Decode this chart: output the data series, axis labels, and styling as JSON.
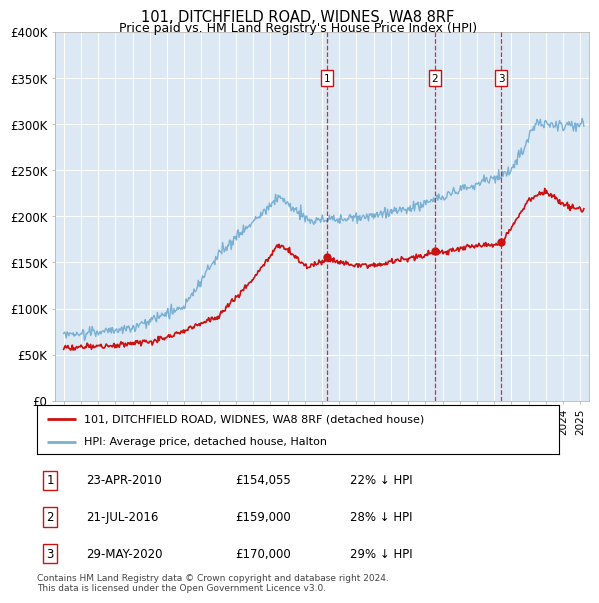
{
  "title": "101, DITCHFIELD ROAD, WIDNES, WA8 8RF",
  "subtitle": "Price paid vs. HM Land Registry's House Price Index (HPI)",
  "red_label": "101, DITCHFIELD ROAD, WIDNES, WA8 8RF (detached house)",
  "blue_label": "HPI: Average price, detached house, Halton",
  "footer": "Contains HM Land Registry data © Crown copyright and database right 2024.\nThis data is licensed under the Open Government Licence v3.0.",
  "transactions": [
    {
      "num": 1,
      "date": "23-APR-2010",
      "price": "£154,055",
      "pct": "22% ↓ HPI",
      "year": 2010.31
    },
    {
      "num": 2,
      "date": "21-JUL-2016",
      "price": "£159,000",
      "pct": "28% ↓ HPI",
      "year": 2016.55
    },
    {
      "num": 3,
      "date": "29-MAY-2020",
      "price": "£170,000",
      "pct": "29% ↓ HPI",
      "year": 2020.41
    }
  ],
  "ylim": [
    0,
    400000
  ],
  "yticks": [
    0,
    50000,
    100000,
    150000,
    200000,
    250000,
    300000,
    350000,
    400000
  ],
  "xlim_start": 1994.5,
  "xlim_end": 2025.5,
  "background_color": "#dce9f5",
  "red_color": "#cc1111",
  "blue_color": "#7ab0d4",
  "title_fontsize": 10.5,
  "subtitle_fontsize": 9.0
}
